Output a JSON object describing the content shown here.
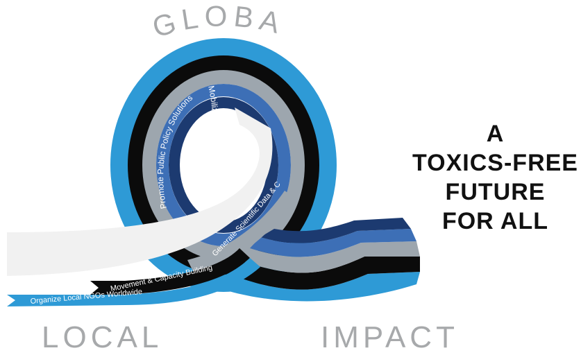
{
  "words": {
    "global": "GLOBAL",
    "local": "LOCAL",
    "impact": "IMPACT"
  },
  "headline": {
    "line1": "A",
    "line2": "TOXICS-FREE",
    "line3": "FUTURE",
    "line4": "FOR ALL"
  },
  "bands": {
    "organize": "Organize Local NGOs Worldwide",
    "movement": "Movement & Capacity Building",
    "generate": "Generate Scientific Data  & Communicate Evidence",
    "promote": "Promote Public Policy Solutions",
    "mobilize": "Mobilize Resources"
  },
  "colors": {
    "light_blue": "#2e9ad6",
    "black": "#0b0b0b",
    "gray": "#9da6ae",
    "mid_blue": "#3d6fb6",
    "navy": "#1c3a70",
    "whitish": "#f1f1f1",
    "text_gray": "#a7a9ab"
  }
}
